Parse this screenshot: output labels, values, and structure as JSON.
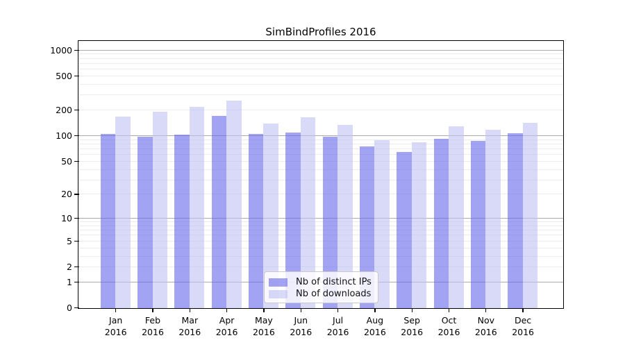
{
  "title": "SimBindProfiles 2016",
  "chart_data": {
    "type": "bar",
    "title": "SimBindProfiles 2016",
    "categories": [
      "Jan",
      "Feb",
      "Mar",
      "Apr",
      "May",
      "Jun",
      "Jul",
      "Aug",
      "Sep",
      "Oct",
      "Nov",
      "Dec"
    ],
    "x_tick_second_line": "2016",
    "series": [
      {
        "name": "Nb of distinct IPs",
        "color": "rgba(102,102,235,0.6)",
        "values": [
          105,
          99,
          103,
          172,
          105,
          109,
          99,
          76,
          65,
          92,
          87,
          108
        ]
      },
      {
        "name": "Nb of downloads",
        "color": "rgba(192,192,243,0.6)",
        "values": [
          168,
          192,
          218,
          262,
          140,
          165,
          134,
          89,
          84,
          130,
          118,
          142
        ]
      }
    ],
    "y_axis": {
      "scale": "log10(value+1)",
      "tick_labels": [
        1000,
        500,
        200,
        100,
        50,
        20,
        10,
        5,
        2,
        1,
        0
      ],
      "major_gridlines": [
        1,
        10,
        100,
        1000
      ],
      "minor_gridlines": [
        2,
        3,
        4,
        5,
        6,
        7,
        8,
        9,
        20,
        30,
        40,
        50,
        60,
        70,
        80,
        90,
        200,
        300,
        400,
        500,
        600,
        700,
        800,
        900
      ],
      "ymin": 0,
      "ymax": 1260
    },
    "legend": {
      "position": "bottom-center",
      "entries": [
        "Nb of distinct IPs",
        "Nb of downloads"
      ]
    },
    "grid": true
  },
  "colors": {
    "bar_distinct_ips_rendered": "#a3a3f3",
    "bar_downloads_rendered": "#d9d9f8",
    "major_gridline": "#ababab",
    "minor_gridline": "#ececec",
    "axis_spine": "#000000",
    "legend_border": "#c9c9c9",
    "background": "#ffffff"
  }
}
